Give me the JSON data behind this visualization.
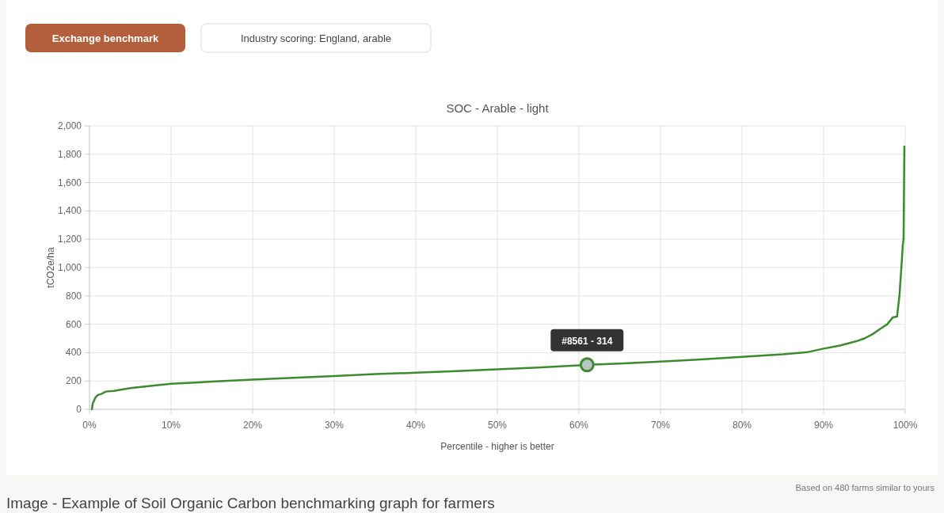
{
  "chart_data": {
    "type": "line",
    "title": "SOC - Arable - light",
    "xlabel": "Percentile - higher is better",
    "ylabel": "tCO2e/ha",
    "annotations": [
      "Exchange benchmark",
      "Industry scoring: England, arable",
      {
        "text": "#8561 - 314",
        "x": 61,
        "y": 314
      },
      "Based on 480 farms similar to yours",
      "Image - Example of Soil Organic Carbon benchmarking graph for farmers"
    ],
    "series": [
      {
        "color": "#3d8b2f",
        "x": [
          0.3,
          0.4,
          0.7,
          1,
          1.5,
          2,
          3,
          5,
          7,
          10,
          15,
          20,
          25,
          30,
          35,
          40,
          45,
          50,
          55,
          60,
          61,
          65,
          70,
          75,
          80,
          85,
          88,
          90,
          92,
          94,
          95,
          96,
          97,
          97.8,
          98.5,
          99,
          99.3,
          99.6,
          99.7,
          99.8,
          99.9
        ],
        "values": [
          0,
          40,
          80,
          100,
          110,
          125,
          130,
          150,
          162,
          180,
          195,
          210,
          222,
          235,
          248,
          258,
          270,
          282,
          295,
          310,
          314,
          322,
          337,
          352,
          370,
          388,
          403,
          428,
          450,
          480,
          500,
          530,
          570,
          600,
          650,
          654,
          804,
          1061,
          1156,
          1200,
          1855
        ]
      }
    ],
    "xlim": [
      0,
      100
    ],
    "xticks": [
      {
        "value": 0,
        "label": "0%"
      },
      {
        "value": 10,
        "label": "10%"
      },
      {
        "value": 20,
        "label": "20%"
      },
      {
        "value": 30,
        "label": "30%"
      },
      {
        "value": 40,
        "label": "40%"
      },
      {
        "value": 50,
        "label": "50%"
      },
      {
        "value": 60,
        "label": "60%"
      },
      {
        "value": 70,
        "label": "70%"
      },
      {
        "value": 80,
        "label": "80%"
      },
      {
        "value": 90,
        "label": "90%"
      },
      {
        "value": 100,
        "label": "100%"
      }
    ],
    "ylim": [
      0,
      2000
    ],
    "yticks": [
      0,
      200,
      400,
      600,
      800,
      {
        "value": 1000,
        "label": "1,000"
      },
      {
        "value": 1200,
        "label": "1,200"
      },
      {
        "value": 1400,
        "label": "1,400"
      },
      {
        "value": 1600,
        "label": "1,600"
      },
      {
        "value": 1800,
        "label": "1,800"
      },
      {
        "value": 2000,
        "label": "2,000"
      }
    ],
    "grid": true,
    "marker": "none",
    "line_style": "solid"
  }
}
